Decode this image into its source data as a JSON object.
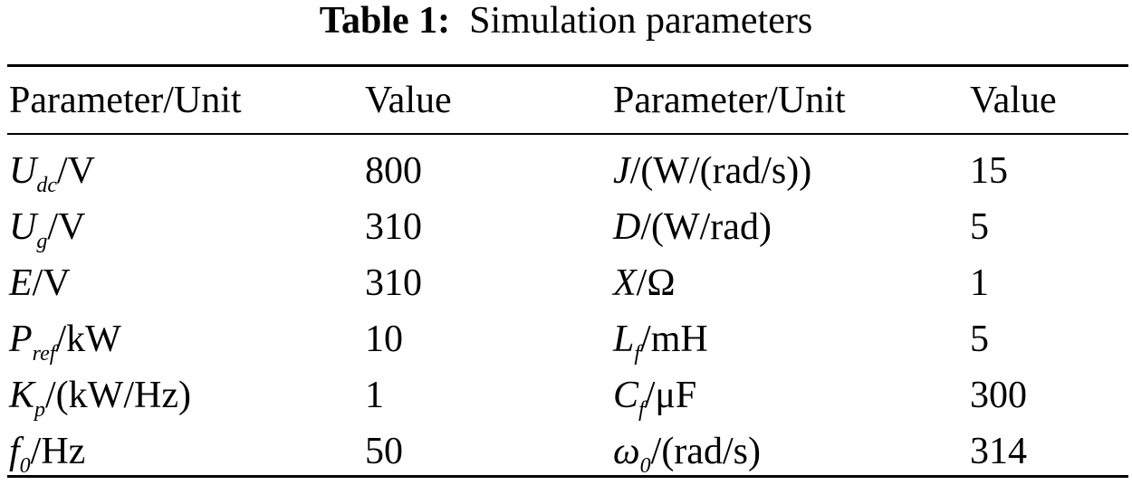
{
  "caption": {
    "label": "Table 1:",
    "title": "Simulation parameters"
  },
  "table": {
    "headers": [
      "Parameter/Unit",
      "Value",
      "Parameter/Unit",
      "Value"
    ],
    "rows": [
      {
        "left": {
          "symbol": "U",
          "sub": "dc",
          "unit": "/V",
          "value": "800"
        },
        "right": {
          "symbol": "J",
          "sub": "",
          "unit": "/(W/(rad/s))",
          "value": "15"
        }
      },
      {
        "left": {
          "symbol": "U",
          "sub": "g",
          "unit": "/V",
          "value": "310"
        },
        "right": {
          "symbol": "D",
          "sub": "",
          "unit": "/(W/rad)",
          "value": "5"
        }
      },
      {
        "left": {
          "symbol": "E",
          "sub": "",
          "unit": "/V",
          "value": "310"
        },
        "right": {
          "symbol": "X",
          "sub": "",
          "unit": "/Ω",
          "value": "1"
        }
      },
      {
        "left": {
          "symbol": "P",
          "sub": "ref",
          "unit": "/kW",
          "value": "10"
        },
        "right": {
          "symbol": "L",
          "sub": "f",
          "unit": "/mH",
          "value": "5"
        }
      },
      {
        "left": {
          "symbol": "K",
          "sub": "p",
          "unit": "/(kW/Hz)",
          "value": "1"
        },
        "right": {
          "symbol": "C",
          "sub": "f",
          "unit": "/μF",
          "value": "300"
        }
      },
      {
        "left": {
          "symbol": "f",
          "sub": "0",
          "unit": "/Hz",
          "value": "50"
        },
        "right": {
          "symbol": "ω",
          "sub": "0",
          "unit": "/(rad/s)",
          "value": "314"
        }
      }
    ]
  }
}
